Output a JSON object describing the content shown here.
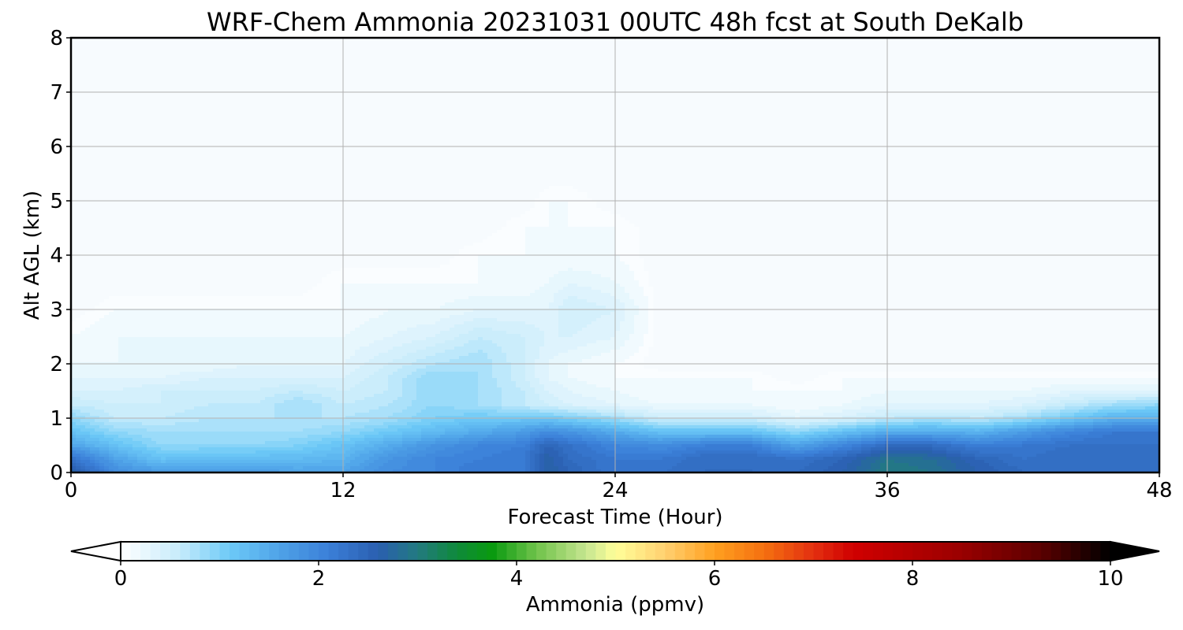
{
  "chart_data": {
    "type": "heatmap",
    "title": "WRF-Chem Ammonia  20231031 00UTC 48h fcst at South DeKalb",
    "xlabel": "Forecast Time (Hour)",
    "ylabel": "Alt AGL (km)",
    "xlim": [
      0,
      48
    ],
    "ylim": [
      0,
      8
    ],
    "x_ticks": [
      0,
      12,
      24,
      36,
      48
    ],
    "y_ticks": [
      0,
      1,
      2,
      3,
      4,
      5,
      6,
      7,
      8
    ],
    "grid": true,
    "colorbar": {
      "label": "Ammonia  (ppmv)",
      "range": [
        0,
        10
      ],
      "ticks": [
        0,
        2,
        4,
        6,
        8,
        10
      ],
      "extend": "both",
      "levels": 100,
      "color_stops": [
        {
          "v": 0.0,
          "color": "#ffffff"
        },
        {
          "v": 0.6,
          "color": "#c6ebfb"
        },
        {
          "v": 1.1,
          "color": "#6dcaf7"
        },
        {
          "v": 1.6,
          "color": "#4fa3e8"
        },
        {
          "v": 2.1,
          "color": "#3b7fd8"
        },
        {
          "v": 2.6,
          "color": "#2a5fb0"
        },
        {
          "v": 3.0,
          "color": "#227a80"
        },
        {
          "v": 3.4,
          "color": "#0f8a3a"
        },
        {
          "v": 3.75,
          "color": "#0a9a10"
        },
        {
          "v": 4.2,
          "color": "#6fc24a"
        },
        {
          "v": 4.7,
          "color": "#c6e690"
        },
        {
          "v": 5.0,
          "color": "#ffff99"
        },
        {
          "v": 5.5,
          "color": "#ffd070"
        },
        {
          "v": 6.0,
          "color": "#ffa020"
        },
        {
          "v": 6.5,
          "color": "#f57010"
        },
        {
          "v": 7.0,
          "color": "#e33010"
        },
        {
          "v": 7.4,
          "color": "#d00000"
        },
        {
          "v": 8.5,
          "color": "#990000"
        },
        {
          "v": 9.3,
          "color": "#5a0000"
        },
        {
          "v": 10.0,
          "color": "#000000"
        }
      ]
    },
    "field": {
      "x_hours": [
        0,
        2,
        4,
        6,
        8,
        10,
        12,
        14,
        16,
        18,
        20,
        21,
        22,
        24,
        26,
        28,
        30,
        32,
        34,
        36,
        38,
        40,
        42,
        44,
        46,
        48
      ],
      "alt_km": [
        0,
        0.25,
        0.5,
        0.75,
        1.0,
        1.25,
        1.5,
        1.75,
        2.0,
        2.5,
        3.0,
        3.5,
        4.0,
        4.5,
        5.0,
        5.5,
        6,
        7,
        8
      ],
      "values_ppmv": [
        [
          2.7,
          1.9,
          1.7,
          1.7,
          1.7,
          1.6,
          1.6,
          1.9,
          2.0,
          2.2,
          2.2,
          2.7,
          2.5,
          2.2,
          2.3,
          2.4,
          2.4,
          2.4,
          2.6,
          3.0,
          2.9,
          2.6,
          2.4,
          2.4,
          2.3,
          2.4
        ],
        [
          2.3,
          1.6,
          1.2,
          1.3,
          1.3,
          1.3,
          1.4,
          1.8,
          2.0,
          2.1,
          2.2,
          2.7,
          2.4,
          2.2,
          2.2,
          2.4,
          2.4,
          2.3,
          2.5,
          2.9,
          2.8,
          2.5,
          2.3,
          2.4,
          2.3,
          2.4
        ],
        [
          1.6,
          1.2,
          0.9,
          0.9,
          0.9,
          1.0,
          1.2,
          1.5,
          1.8,
          2.0,
          2.1,
          2.5,
          2.3,
          2.0,
          1.9,
          2.1,
          2.1,
          1.6,
          2.0,
          2.4,
          2.4,
          2.1,
          2.2,
          2.3,
          2.3,
          2.3
        ],
        [
          1.2,
          0.9,
          0.8,
          0.8,
          0.8,
          0.8,
          0.9,
          1.1,
          1.3,
          1.5,
          1.7,
          1.9,
          1.8,
          1.5,
          1.2,
          1.2,
          1.2,
          0.9,
          1.2,
          1.5,
          1.5,
          1.4,
          1.7,
          2.0,
          2.2,
          2.2
        ],
        [
          0.9,
          0.6,
          0.6,
          0.7,
          0.7,
          0.7,
          0.7,
          0.8,
          1.0,
          1.1,
          1.1,
          1.1,
          1.0,
          0.8,
          0.5,
          0.5,
          0.5,
          0.3,
          0.4,
          0.6,
          0.7,
          0.6,
          0.8,
          1.1,
          1.4,
          1.4
        ],
        [
          0.6,
          0.5,
          0.5,
          0.6,
          0.6,
          0.8,
          0.6,
          0.7,
          0.9,
          0.8,
          0.6,
          0.5,
          0.4,
          0.3,
          0.2,
          0.2,
          0.2,
          0.1,
          0.2,
          0.3,
          0.3,
          0.3,
          0.4,
          0.6,
          0.8,
          0.9
        ],
        [
          0.4,
          0.4,
          0.5,
          0.5,
          0.5,
          0.6,
          0.5,
          0.6,
          0.9,
          0.8,
          0.6,
          0.4,
          0.3,
          0.2,
          0.1,
          0.1,
          0.1,
          0.1,
          0.1,
          0.2,
          0.2,
          0.2,
          0.2,
          0.3,
          0.3,
          0.3
        ],
        [
          0.3,
          0.3,
          0.3,
          0.4,
          0.4,
          0.4,
          0.4,
          0.6,
          0.9,
          0.8,
          0.5,
          0.3,
          0.2,
          0.1,
          0.1,
          0.1,
          0.1,
          0.0,
          0.1,
          0.1,
          0.1,
          0.1,
          0.1,
          0.1,
          0.1,
          0.1
        ],
        [
          0.2,
          0.2,
          0.2,
          0.2,
          0.3,
          0.3,
          0.3,
          0.5,
          0.7,
          0.8,
          0.5,
          0.3,
          0.2,
          0.1,
          0.0,
          0.0,
          0.0,
          0.0,
          0.0,
          0.0,
          0.0,
          0.0,
          0.0,
          0.0,
          0.0,
          0.0
        ],
        [
          0.1,
          0.2,
          0.2,
          0.2,
          0.2,
          0.2,
          0.2,
          0.3,
          0.4,
          0.6,
          0.5,
          0.4,
          0.4,
          0.3,
          0.0,
          0.0,
          0.0,
          0.0,
          0.0,
          0.0,
          0.0,
          0.0,
          0.0,
          0.0,
          0.0,
          0.0
        ],
        [
          0.0,
          0.1,
          0.1,
          0.1,
          0.1,
          0.1,
          0.1,
          0.2,
          0.2,
          0.3,
          0.3,
          0.3,
          0.5,
          0.4,
          0.0,
          0.0,
          0.0,
          0.0,
          0.0,
          0.0,
          0.0,
          0.0,
          0.0,
          0.0,
          0.0,
          0.0
        ],
        [
          0.0,
          0.0,
          0.0,
          0.0,
          0.0,
          0.0,
          0.1,
          0.1,
          0.1,
          0.1,
          0.1,
          0.2,
          0.3,
          0.2,
          0.0,
          0.0,
          0.0,
          0.0,
          0.0,
          0.0,
          0.0,
          0.0,
          0.0,
          0.0,
          0.0,
          0.0
        ],
        [
          0.0,
          0.0,
          0.0,
          0.0,
          0.0,
          0.0,
          0.0,
          0.0,
          0.0,
          0.1,
          0.1,
          0.1,
          0.1,
          0.1,
          0.0,
          0.0,
          0.0,
          0.0,
          0.0,
          0.0,
          0.0,
          0.0,
          0.0,
          0.0,
          0.0,
          0.0
        ],
        [
          0.0,
          0.0,
          0.0,
          0.0,
          0.0,
          0.0,
          0.0,
          0.0,
          0.0,
          0.0,
          0.1,
          0.1,
          0.1,
          0.1,
          0.0,
          0.0,
          0.0,
          0.0,
          0.0,
          0.0,
          0.0,
          0.0,
          0.0,
          0.0,
          0.0,
          0.0
        ],
        [
          0.0,
          0.0,
          0.0,
          0.0,
          0.0,
          0.0,
          0.0,
          0.0,
          0.0,
          0.0,
          0.0,
          0.1,
          0.1,
          0.0,
          0.0,
          0.0,
          0.0,
          0.0,
          0.0,
          0.0,
          0.0,
          0.0,
          0.0,
          0.0,
          0.0,
          0.0
        ],
        [
          0.0,
          0.0,
          0.0,
          0.0,
          0.0,
          0.0,
          0.0,
          0.0,
          0.0,
          0.0,
          0.0,
          0.0,
          0.0,
          0.0,
          0.0,
          0.0,
          0.0,
          0.0,
          0.0,
          0.0,
          0.0,
          0.0,
          0.0,
          0.0,
          0.0,
          0.0
        ],
        [
          0.0,
          0.0,
          0.0,
          0.0,
          0.0,
          0.0,
          0.0,
          0.0,
          0.0,
          0.0,
          0.0,
          0.0,
          0.0,
          0.0,
          0.0,
          0.0,
          0.0,
          0.0,
          0.0,
          0.0,
          0.0,
          0.0,
          0.0,
          0.0,
          0.0,
          0.0
        ],
        [
          0.0,
          0.0,
          0.0,
          0.0,
          0.0,
          0.0,
          0.0,
          0.0,
          0.0,
          0.0,
          0.0,
          0.0,
          0.0,
          0.0,
          0.0,
          0.0,
          0.0,
          0.0,
          0.0,
          0.0,
          0.0,
          0.0,
          0.0,
          0.0,
          0.0,
          0.0
        ],
        [
          0.0,
          0.0,
          0.0,
          0.0,
          0.0,
          0.0,
          0.0,
          0.0,
          0.0,
          0.0,
          0.0,
          0.0,
          0.0,
          0.0,
          0.0,
          0.0,
          0.0,
          0.0,
          0.0,
          0.0,
          0.0,
          0.0,
          0.0,
          0.0,
          0.0,
          0.0
        ]
      ]
    }
  }
}
